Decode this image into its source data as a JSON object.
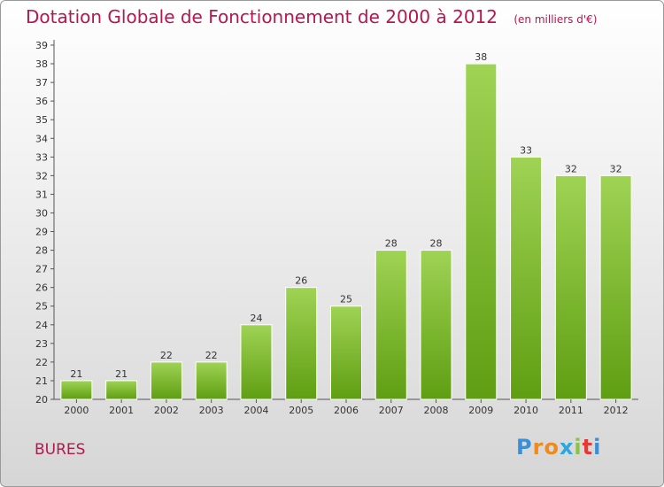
{
  "title": "Dotation Globale de Fonctionnement de 2000 à 2012",
  "unit": "(en milliers d'€)",
  "commune": "BURES",
  "logo": "Proxiti",
  "colors": {
    "title": "#b5174f",
    "bar_top": "#9fd354",
    "bar_bottom": "#5f9e12"
  },
  "chart_data": {
    "type": "bar",
    "title": "Dotation Globale de Fonctionnement de 2000 à 2012",
    "subtitle": "(en milliers d'€)",
    "xlabel": "",
    "ylabel": "",
    "categories": [
      "2000",
      "2001",
      "2002",
      "2003",
      "2004",
      "2005",
      "2006",
      "2007",
      "2008",
      "2009",
      "2010",
      "2011",
      "2012"
    ],
    "values": [
      21,
      21,
      22,
      22,
      24,
      26,
      25,
      28,
      28,
      38,
      33,
      32,
      32
    ],
    "ylim": [
      20,
      39
    ],
    "yticks": [
      20,
      21,
      22,
      23,
      24,
      25,
      26,
      27,
      28,
      29,
      30,
      31,
      32,
      33,
      34,
      35,
      36,
      37,
      38,
      39
    ],
    "grid": false,
    "data_labels": true
  }
}
